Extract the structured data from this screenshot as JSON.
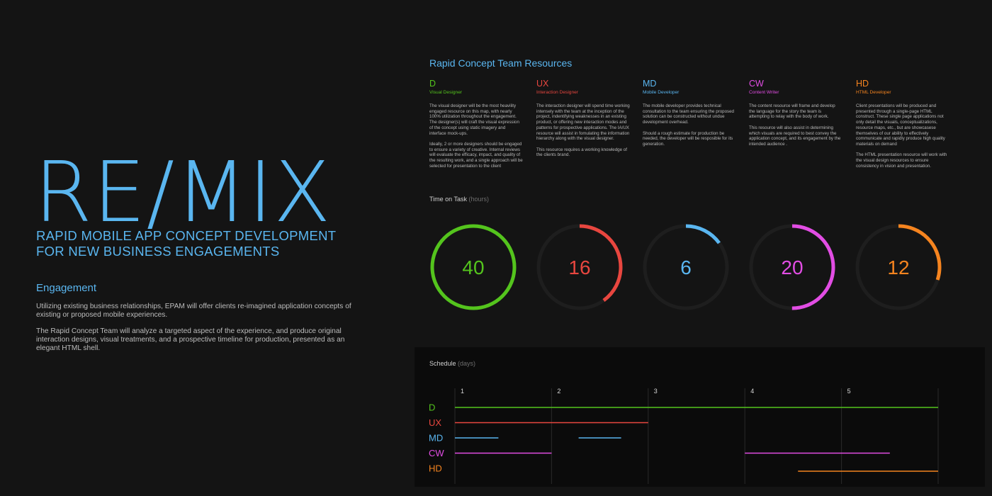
{
  "hero": {
    "logo_left": "RE",
    "logo_slash": "/",
    "logo_right": "MIX",
    "tagline": "RAPID MOBILE APP CONCEPT DEVELOPMENT FOR NEW BUSINESS ENGAGEMENTS"
  },
  "engagement": {
    "heading": "Engagement",
    "paragraphs": [
      "Utilizing existing business relationships, EPAM will offer clients re-imagined application concepts of existing or proposed mobile experiences.",
      "The Rapid Concept Team will analyze a targeted aspect of the experience, and produce original interaction designs, visual treatments, and a prospective timeline for production, presented as an elegant HTML shell."
    ]
  },
  "resources": {
    "heading": "Rapid Concept Team Resources",
    "items": [
      {
        "code": "D",
        "role": "Visual Designer",
        "color": "#54c41d",
        "paragraphs": [
          "The visual designer will be the most heavility engaged resource on this map, with nearly 100% utilization throughout the engagement. The designer(s) will craft the visual expression of the concept using static imagery and interface mock-ups.",
          "Ideally, 2 or more designers should be engaged to ensure a variety of creative. Internal reviews will evaluate the efficacy, impact, and quality of the resulting work, and a single approach will be selected for presentation to the client"
        ]
      },
      {
        "code": "UX",
        "role": "Interaction Designer",
        "color": "#e8463f",
        "paragraphs": [
          "The interaction designer will spend time working intensely with the team at the inception of the project, indentifying weaknesses in an existing product, or offering new interaction modes and patterns for prospective applications. The IA/UX resource will assist in fomulating the information hierarchy along with the visual designer.",
          "This resource requires a working knowledge of the clients brand."
        ]
      },
      {
        "code": "MD",
        "role": "Mobile Developer",
        "color": "#5ab6f0",
        "paragraphs": [
          "The mobile developer provides technical consultation to the team ensuring the proposed solution can be constructed without undue development overhead.",
          "Should a rough estimate for production be needed, the developer will be resposible for its generation."
        ]
      },
      {
        "code": "CW",
        "role": "Content Writer",
        "color": "#e24de4",
        "paragraphs": [
          "The content resource will frame and develop the language for the story the team is attempting to relay with the body of work.",
          "This resource will also assist in determining which visuals are required to best convey the application concept, and its engagement by the intended audience ."
        ]
      },
      {
        "code": "HD",
        "role": "HTML Developer",
        "color": "#f5841f",
        "paragraphs": [
          "Client presentations will be produced and presented through a single-page HTML construct. These single page applications not only detail the visuals, conceptualizations, resource maps, etc., but are showcasese themselves of our ability to effectively communicate and rapidly produce high quality materials on demand",
          "The HTML presentation resource will work with the visual design resources to ensure consistency in vision and presentation."
        ]
      }
    ]
  },
  "chart_data": [
    {
      "type": "gauge",
      "title": "Time on Task",
      "unit": "(hours)",
      "max": 40,
      "items": [
        {
          "label": "D",
          "value": 40,
          "color": "#54c41d"
        },
        {
          "label": "UX",
          "value": 16,
          "color": "#e8463f"
        },
        {
          "label": "MD",
          "value": 6,
          "color": "#5ab6f0"
        },
        {
          "label": "CW",
          "value": 20,
          "color": "#e24de4"
        },
        {
          "label": "HD",
          "value": 12,
          "color": "#f5841f"
        }
      ]
    },
    {
      "type": "gantt",
      "title": "Schedule",
      "unit": "(days)",
      "x_ticks": [
        "1",
        "2",
        "3",
        "4",
        "5"
      ],
      "xlim": [
        0,
        5
      ],
      "rows": [
        {
          "label": "D",
          "color": "#54c41d",
          "segments": [
            [
              0,
              5
            ]
          ]
        },
        {
          "label": "UX",
          "color": "#e8463f",
          "segments": [
            [
              0,
              2
            ]
          ]
        },
        {
          "label": "MD",
          "color": "#5ab6f0",
          "segments": [
            [
              0,
              0.45
            ],
            [
              1.28,
              1.72
            ]
          ]
        },
        {
          "label": "CW",
          "color": "#e24de4",
          "segments": [
            [
              0,
              1
            ],
            [
              3,
              4.5
            ]
          ]
        },
        {
          "label": "HD",
          "color": "#f5841f",
          "segments": [
            [
              3.55,
              5
            ]
          ]
        }
      ]
    }
  ]
}
